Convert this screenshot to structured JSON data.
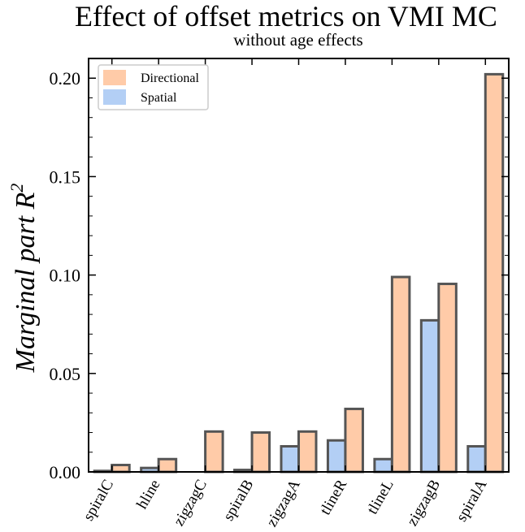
{
  "chart_data": {
    "type": "bar",
    "title": "Effect of offset metrics on VMI MC",
    "subtitle": "without age effects",
    "xlabel": "",
    "ylabel": "Marginal part R",
    "ylabel_superscript": "2",
    "categories": [
      "spiralC",
      "hline",
      "zigzagC",
      "spiralB",
      "zigzagA",
      "tlineR",
      "tlineL",
      "zigzagB",
      "spiralA"
    ],
    "series": [
      {
        "name": "Spatial",
        "color": "#b3cff5",
        "values": [
          0.0005,
          0.002,
          0.0,
          0.001,
          0.013,
          0.016,
          0.0065,
          0.077,
          0.013
        ]
      },
      {
        "name": "Directional",
        "color": "#ffcba8",
        "values": [
          0.0035,
          0.0065,
          0.0205,
          0.02,
          0.0205,
          0.032,
          0.099,
          0.0955,
          0.202
        ]
      }
    ],
    "ylim": [
      0,
      0.21
    ],
    "yticks": [
      "0.00",
      "0.05",
      "0.10",
      "0.15",
      "0.20"
    ],
    "legend": [
      {
        "label": "Directional",
        "color": "#ffcba8"
      },
      {
        "label": "Spatial",
        "color": "#b3cff5"
      }
    ],
    "legend_position": "top-left",
    "bar_edge_color": "#555555",
    "grid": false
  }
}
